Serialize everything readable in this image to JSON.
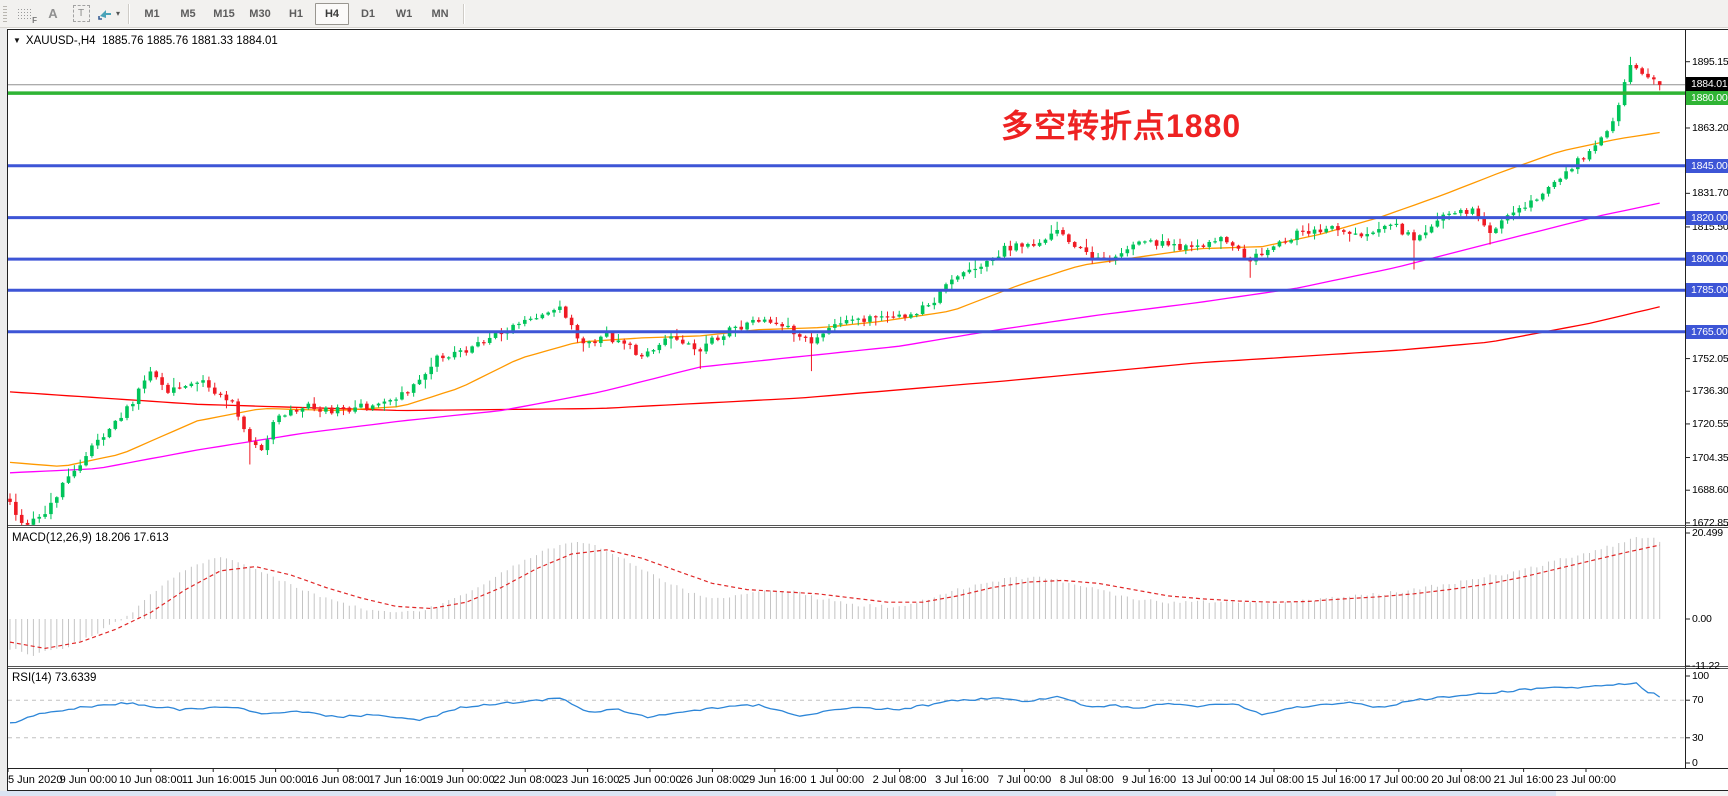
{
  "toolbar": {
    "icons": [
      {
        "name": "grid-f-icon",
        "type": "gridf",
        "glyph": "F"
      },
      {
        "name": "label-a-icon",
        "type": "letter",
        "glyph": "A"
      },
      {
        "name": "textbox-t-icon",
        "type": "boxed",
        "glyph": "T"
      },
      {
        "name": "objects-arrows-icon",
        "type": "arrows",
        "glyph": ""
      }
    ],
    "timeframes": [
      {
        "label": "M1",
        "active": false
      },
      {
        "label": "M5",
        "active": false
      },
      {
        "label": "M15",
        "active": false
      },
      {
        "label": "M30",
        "active": false
      },
      {
        "label": "H1",
        "active": false
      },
      {
        "label": "H4",
        "active": true
      },
      {
        "label": "D1",
        "active": false
      },
      {
        "label": "W1",
        "active": false
      },
      {
        "label": "MN",
        "active": false
      }
    ]
  },
  "chart": {
    "title_line": "XAUUSD-,H4  1885.76 1885.76 1881.33 1884.01",
    "symbol": "XAUUSD-",
    "period": "H4",
    "annotation": {
      "text": "多空转折点1880",
      "color": "#ee2222"
    }
  },
  "indicators": {
    "macd_label": "MACD(12,26,9) 18.206 17.613",
    "rsi_label": "RSI(14) 73.6339"
  },
  "price_axis": {
    "ticks": [
      "1895.15",
      "1863.20",
      "1831.70",
      "1815.50",
      "1752.05",
      "1736.30",
      "1720.55",
      "1704.35",
      "1688.60",
      "1672.85"
    ],
    "current_label": {
      "text": "1884.01",
      "bg": "#000000",
      "fg": "#ffffff"
    }
  },
  "time_axis": {
    "labels": [
      "5 Jun 2020",
      "9 Jun 00:00",
      "10 Jun 08:00",
      "11 Jun 16:00",
      "15 Jun 00:00",
      "16 Jun 08:00",
      "17 Jun 16:00",
      "19 Jun 00:00",
      "22 Jun 08:00",
      "23 Jun 16:00",
      "25 Jun 00:00",
      "26 Jun 08:00",
      "29 Jun 16:00",
      "1 Jul 00:00",
      "2 Jul 08:00",
      "3 Jul 16:00",
      "7 Jul 00:00",
      "8 Jul 08:00",
      "9 Jul 16:00",
      "13 Jul 00:00",
      "14 Jul 08:00",
      "15 Jul 16:00",
      "17 Jul 00:00",
      "20 Jul 08:00",
      "21 Jul 16:00",
      "23 Jul 00:00"
    ]
  },
  "colors": {
    "bull": "#00c45a",
    "bear": "#ef1a23",
    "blue_level": "#3d55d6",
    "green_level": "#2fb434",
    "current_line": "#909090",
    "ma_fast": "#ff9900",
    "ma_medium": "#ff00ff",
    "ma_slow": "#ff0000",
    "macd_hist": "#c4c4c4",
    "macd_signal": "#e02828",
    "rsi_line": "#2d86d8",
    "rsi_levels": "#c0c0c0",
    "annotation": "#ee2222"
  },
  "chart_data": {
    "type": "candlestick",
    "symbol": "XAUUSD",
    "timeframe": "H4",
    "visible_range": {
      "start": "5 Jun 2020",
      "end": "23 Jul 2020"
    },
    "current_ohlc": {
      "open": 1885.76,
      "high": 1885.76,
      "low": 1881.33,
      "close": 1884.01
    },
    "current_price": 1884.01,
    "bars_visible": 283,
    "price_axis_range": [
      1672.85,
      1910.0
    ],
    "horizontal_lines": [
      {
        "price": 1880.0,
        "label": "1880.00",
        "color": "#2fb434",
        "width": 3.5
      },
      {
        "price": 1845.0,
        "label": "1845.00",
        "color": "#3d55d6",
        "width": 3
      },
      {
        "price": 1820.0,
        "label": "1820.00",
        "color": "#3d55d6",
        "width": 3
      },
      {
        "price": 1800.0,
        "label": "1800.00",
        "color": "#3d55d6",
        "width": 3
      },
      {
        "price": 1785.0,
        "label": "1785.00",
        "color": "#3d55d6",
        "width": 3
      },
      {
        "price": 1765.0,
        "label": "1765.00",
        "color": "#3d55d6",
        "width": 3
      }
    ],
    "close_path_anchors": [
      [
        0,
        1683
      ],
      [
        2,
        1672
      ],
      [
        6,
        1678
      ],
      [
        10,
        1695
      ],
      [
        15,
        1712
      ],
      [
        21,
        1731
      ],
      [
        24,
        1746
      ],
      [
        27,
        1737
      ],
      [
        32,
        1742
      ],
      [
        38,
        1731
      ],
      [
        41,
        1712
      ],
      [
        43,
        1707
      ],
      [
        45,
        1722
      ],
      [
        50,
        1729
      ],
      [
        56,
        1727
      ],
      [
        63,
        1730
      ],
      [
        68,
        1736
      ],
      [
        73,
        1752
      ],
      [
        79,
        1757
      ],
      [
        84,
        1765
      ],
      [
        89,
        1771
      ],
      [
        94,
        1776
      ],
      [
        98,
        1758
      ],
      [
        102,
        1763
      ],
      [
        108,
        1754
      ],
      [
        113,
        1762
      ],
      [
        118,
        1757
      ],
      [
        123,
        1766
      ],
      [
        128,
        1770
      ],
      [
        133,
        1767
      ],
      [
        137,
        1761
      ],
      [
        142,
        1769
      ],
      [
        147,
        1771
      ],
      [
        152,
        1772
      ],
      [
        157,
        1777
      ],
      [
        161,
        1790
      ],
      [
        166,
        1796
      ],
      [
        170,
        1805
      ],
      [
        175,
        1808
      ],
      [
        179,
        1814
      ],
      [
        183,
        1804
      ],
      [
        187,
        1799
      ],
      [
        191,
        1806
      ],
      [
        196,
        1808
      ],
      [
        202,
        1805
      ],
      [
        207,
        1810
      ],
      [
        212,
        1799
      ],
      [
        215,
        1805
      ],
      [
        220,
        1812
      ],
      [
        226,
        1815
      ],
      [
        231,
        1812
      ],
      [
        236,
        1818
      ],
      [
        240,
        1809
      ],
      [
        245,
        1820
      ],
      [
        250,
        1824
      ],
      [
        253,
        1814
      ],
      [
        256,
        1820
      ],
      [
        262,
        1831
      ],
      [
        267,
        1845
      ],
      [
        271,
        1854
      ],
      [
        274,
        1866
      ],
      [
        277,
        1893
      ],
      [
        279,
        1888
      ],
      [
        281,
        1886
      ],
      [
        282,
        1884.01
      ]
    ],
    "long_wicks": {
      "2": 1671,
      "41": 1701,
      "118": 1747,
      "137": 1746,
      "212": 1791,
      "240": 1795,
      "253": 1807
    },
    "high_wicks": {
      "24": 1748,
      "94": 1780,
      "179": 1818,
      "277": 1897.5
    },
    "moving_averages": [
      {
        "name": "fast",
        "color": "#ff9900",
        "anchors": [
          [
            0,
            1702
          ],
          [
            9,
            1700
          ],
          [
            19,
            1706
          ],
          [
            32,
            1722
          ],
          [
            43,
            1728
          ],
          [
            56,
            1727
          ],
          [
            67,
            1729
          ],
          [
            77,
            1738
          ],
          [
            87,
            1752
          ],
          [
            97,
            1760
          ],
          [
            108,
            1762
          ],
          [
            118,
            1763
          ],
          [
            128,
            1766
          ],
          [
            139,
            1767
          ],
          [
            149,
            1770
          ],
          [
            161,
            1775
          ],
          [
            173,
            1788
          ],
          [
            183,
            1797
          ],
          [
            193,
            1801
          ],
          [
            203,
            1805
          ],
          [
            214,
            1806
          ],
          [
            224,
            1812
          ],
          [
            234,
            1820
          ],
          [
            245,
            1831
          ],
          [
            255,
            1842
          ],
          [
            265,
            1852
          ],
          [
            275,
            1858
          ],
          [
            282,
            1861
          ]
        ]
      },
      {
        "name": "medium",
        "color": "#ff00ff",
        "anchors": [
          [
            0,
            1697
          ],
          [
            15,
            1699
          ],
          [
            32,
            1708
          ],
          [
            50,
            1716
          ],
          [
            67,
            1722
          ],
          [
            84,
            1727
          ],
          [
            101,
            1736
          ],
          [
            118,
            1748
          ],
          [
            135,
            1753
          ],
          [
            152,
            1758
          ],
          [
            169,
            1766
          ],
          [
            186,
            1773
          ],
          [
            203,
            1779
          ],
          [
            220,
            1786
          ],
          [
            237,
            1796
          ],
          [
            255,
            1809
          ],
          [
            272,
            1821
          ],
          [
            282,
            1827
          ]
        ]
      },
      {
        "name": "slow",
        "color": "#ff0000",
        "anchors": [
          [
            0,
            1736
          ],
          [
            32,
            1730
          ],
          [
            67,
            1727
          ],
          [
            101,
            1728
          ],
          [
            135,
            1733
          ],
          [
            169,
            1741
          ],
          [
            203,
            1750
          ],
          [
            237,
            1756
          ],
          [
            253,
            1760
          ],
          [
            270,
            1769
          ],
          [
            282,
            1777
          ]
        ]
      }
    ],
    "macd": {
      "label_values": [
        18.206,
        17.613
      ],
      "axis_ticks": [
        "20.499",
        "0.00",
        "-11.22"
      ],
      "hist_anchors": [
        [
          0,
          -7
        ],
        [
          4,
          -8.5
        ],
        [
          9,
          -7
        ],
        [
          14,
          -4
        ],
        [
          18,
          -1
        ],
        [
          20,
          0.5
        ],
        [
          24,
          6
        ],
        [
          28,
          10
        ],
        [
          32,
          13
        ],
        [
          36,
          14.5
        ],
        [
          40,
          13
        ],
        [
          45,
          10
        ],
        [
          50,
          7
        ],
        [
          55,
          4.5
        ],
        [
          60,
          2.5
        ],
        [
          65,
          1.5
        ],
        [
          70,
          2
        ],
        [
          74,
          3.5
        ],
        [
          78,
          6
        ],
        [
          82,
          9
        ],
        [
          86,
          12.5
        ],
        [
          90,
          15.5
        ],
        [
          94,
          17.5
        ],
        [
          97,
          18.5
        ],
        [
          100,
          17.5
        ],
        [
          104,
          15
        ],
        [
          108,
          12
        ],
        [
          112,
          9
        ],
        [
          116,
          6.5
        ],
        [
          120,
          5
        ],
        [
          124,
          5.5
        ],
        [
          128,
          6.5
        ],
        [
          131,
          7
        ],
        [
          134,
          6.5
        ],
        [
          138,
          5
        ],
        [
          142,
          4
        ],
        [
          146,
          3.2
        ],
        [
          150,
          3
        ],
        [
          154,
          3.5
        ],
        [
          158,
          5
        ],
        [
          162,
          7
        ],
        [
          166,
          8.5
        ],
        [
          170,
          9.5
        ],
        [
          174,
          10
        ],
        [
          178,
          9.5
        ],
        [
          182,
          8.5
        ],
        [
          186,
          7
        ],
        [
          190,
          5.5
        ],
        [
          194,
          4.5
        ],
        [
          198,
          4
        ],
        [
          202,
          4
        ],
        [
          206,
          4.2
        ],
        [
          210,
          4
        ],
        [
          214,
          3.8
        ],
        [
          218,
          4
        ],
        [
          222,
          4.5
        ],
        [
          226,
          5
        ],
        [
          230,
          5.5
        ],
        [
          234,
          6
        ],
        [
          238,
          6.5
        ],
        [
          242,
          7.5
        ],
        [
          246,
          8.5
        ],
        [
          250,
          9.5
        ],
        [
          254,
          10.5
        ],
        [
          258,
          11.5
        ],
        [
          262,
          13
        ],
        [
          266,
          14.5
        ],
        [
          270,
          16
        ],
        [
          274,
          17.5
        ],
        [
          277,
          19
        ],
        [
          279,
          19.6
        ],
        [
          281,
          19
        ],
        [
          282,
          18.206
        ]
      ],
      "signal_anchors": [
        [
          0,
          -5.5
        ],
        [
          6,
          -7
        ],
        [
          12,
          -5.5
        ],
        [
          18,
          -2.5
        ],
        [
          24,
          1.5
        ],
        [
          30,
          7
        ],
        [
          36,
          11.5
        ],
        [
          42,
          12.5
        ],
        [
          48,
          10.5
        ],
        [
          54,
          7.5
        ],
        [
          60,
          5
        ],
        [
          66,
          3
        ],
        [
          72,
          2.5
        ],
        [
          78,
          4
        ],
        [
          84,
          7.5
        ],
        [
          90,
          12
        ],
        [
          96,
          15.5
        ],
        [
          102,
          16.5
        ],
        [
          108,
          14.5
        ],
        [
          114,
          11.5
        ],
        [
          120,
          8.5
        ],
        [
          126,
          7
        ],
        [
          132,
          6.5
        ],
        [
          138,
          6
        ],
        [
          144,
          5
        ],
        [
          150,
          4
        ],
        [
          156,
          4
        ],
        [
          162,
          5.5
        ],
        [
          168,
          7.5
        ],
        [
          174,
          8.8
        ],
        [
          180,
          9.2
        ],
        [
          186,
          8.5
        ],
        [
          192,
          7
        ],
        [
          198,
          5.5
        ],
        [
          204,
          4.8
        ],
        [
          210,
          4.3
        ],
        [
          216,
          4
        ],
        [
          222,
          4.2
        ],
        [
          228,
          4.8
        ],
        [
          234,
          5.3
        ],
        [
          240,
          6
        ],
        [
          246,
          7
        ],
        [
          252,
          8.2
        ],
        [
          258,
          9.8
        ],
        [
          264,
          11.8
        ],
        [
          270,
          13.8
        ],
        [
          276,
          15.8
        ],
        [
          282,
          17.613
        ]
      ]
    },
    "rsi": {
      "value": 73.6339,
      "axis_ticks": [
        "100",
        "70",
        "30",
        "0"
      ],
      "levels": [
        70,
        30
      ],
      "anchors": [
        [
          0,
          45
        ],
        [
          5,
          55
        ],
        [
          12,
          62
        ],
        [
          20,
          67
        ],
        [
          29,
          60
        ],
        [
          38,
          63
        ],
        [
          43,
          55
        ],
        [
          50,
          58
        ],
        [
          56,
          52
        ],
        [
          63,
          55
        ],
        [
          70,
          48
        ],
        [
          77,
          62
        ],
        [
          85,
          67
        ],
        [
          94,
          72
        ],
        [
          99,
          57
        ],
        [
          104,
          60
        ],
        [
          109,
          52
        ],
        [
          116,
          58
        ],
        [
          121,
          62
        ],
        [
          128,
          65
        ],
        [
          135,
          52
        ],
        [
          140,
          60
        ],
        [
          145,
          62
        ],
        [
          152,
          60
        ],
        [
          157,
          65
        ],
        [
          162,
          70
        ],
        [
          169,
          72
        ],
        [
          174,
          68
        ],
        [
          179,
          74
        ],
        [
          185,
          62
        ],
        [
          188,
          65
        ],
        [
          193,
          62
        ],
        [
          198,
          66
        ],
        [
          203,
          64
        ],
        [
          209,
          67
        ],
        [
          214,
          55
        ],
        [
          219,
          62
        ],
        [
          224,
          65
        ],
        [
          229,
          68
        ],
        [
          234,
          62
        ],
        [
          240,
          70
        ],
        [
          245,
          73
        ],
        [
          250,
          76
        ],
        [
          255,
          79
        ],
        [
          260,
          82
        ],
        [
          265,
          84
        ],
        [
          268,
          83
        ],
        [
          271,
          85
        ],
        [
          275,
          87
        ],
        [
          278,
          88
        ],
        [
          279,
          83
        ],
        [
          280,
          79
        ],
        [
          281,
          77
        ],
        [
          282,
          73.6339
        ]
      ]
    }
  }
}
